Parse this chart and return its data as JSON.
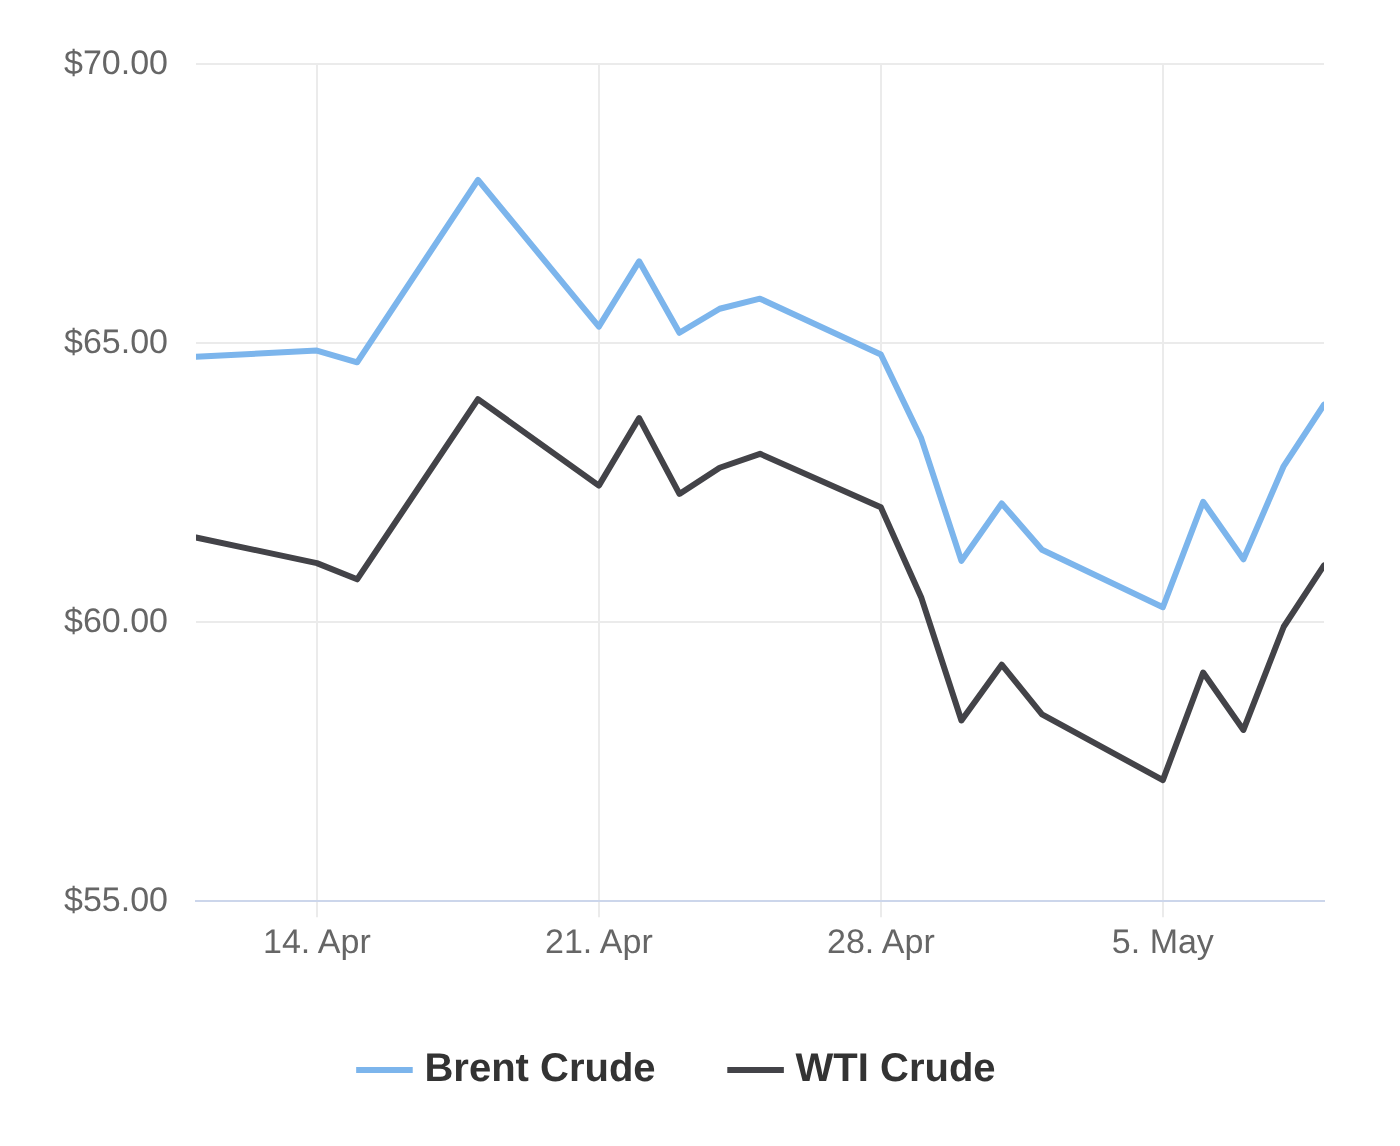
{
  "chart_data": {
    "type": "line",
    "x": [
      "--04-11",
      "--04-14",
      "--04-15",
      "--04-18",
      "--04-21",
      "--04-22",
      "--04-23",
      "--04-24",
      "--04-25",
      "--04-28",
      "--04-29",
      "--04-30",
      "--05-01",
      "--05-02",
      "--05-05",
      "--05-06",
      "--05-07",
      "--05-08",
      "--05-09"
    ],
    "series": [
      {
        "name": "Brent Crude",
        "color": "#7cb5ec",
        "values": [
          64.76,
          64.87,
          64.66,
          67.93,
          65.3,
          66.47,
          65.19,
          65.62,
          65.8,
          64.8,
          63.3,
          61.1,
          62.13,
          61.3,
          60.27,
          62.16,
          61.13,
          62.8,
          63.9
        ]
      },
      {
        "name": "WTI Crude",
        "color": "#434348",
        "values": [
          61.52,
          61.06,
          60.77,
          64.0,
          62.45,
          63.66,
          62.3,
          62.77,
          63.02,
          62.06,
          60.45,
          58.24,
          59.24,
          58.35,
          57.17,
          59.1,
          58.07,
          59.92,
          61.02
        ]
      }
    ],
    "xlim": [
      "--04-11",
      "--05-09"
    ],
    "xticks": [
      {
        "value": "--04-14",
        "label": "14. Apr"
      },
      {
        "value": "--04-21",
        "label": "21. Apr"
      },
      {
        "value": "--04-28",
        "label": "28. Apr"
      },
      {
        "value": "--05-05",
        "label": "5. May"
      }
    ],
    "ylim": [
      55,
      70
    ],
    "yticks": [
      {
        "value": 55,
        "label": "$55.00"
      },
      {
        "value": 60,
        "label": "$60.00"
      },
      {
        "value": 65,
        "label": "$65.00"
      },
      {
        "value": 70,
        "label": "$70.00"
      }
    ],
    "grid": true,
    "legend": "bottom",
    "marker": "none",
    "line_style": "solid"
  }
}
